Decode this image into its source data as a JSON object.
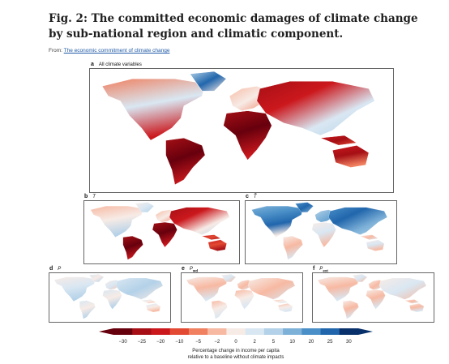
{
  "figure": {
    "title": "Fig. 2: The committed economic damages of climate change by sub-national region and climatic component.",
    "from_prefix": "From: ",
    "from_link": "The economic commitment of climate change"
  },
  "panels": [
    {
      "letter": "a",
      "label": "All climate variables",
      "mode": "all"
    },
    {
      "letter": "b",
      "label": "T",
      "mode": "T"
    },
    {
      "letter": "c",
      "label": "T̃",
      "mode": "Tvar"
    },
    {
      "letter": "d",
      "label": "P",
      "mode": "P"
    },
    {
      "letter": "e",
      "label": "P",
      "sub": "wd",
      "mode": "Pwd"
    },
    {
      "letter": "f",
      "label": "P",
      "sub": "ext",
      "mode": "Pext"
    }
  ],
  "colorbar": {
    "ticks": [
      "−30",
      "−25",
      "−20",
      "−10",
      "−5",
      "−2",
      "0",
      "2",
      "5",
      "10",
      "20",
      "25",
      "30"
    ],
    "label_line1": "Percentage change in income per capita",
    "label_line2": "relative to a baseline without climate impacts",
    "colors": [
      "#67000d",
      "#a50f15",
      "#cb181d",
      "#e34a33",
      "#f08060",
      "#f7b9a2",
      "#f7ebe6",
      "#d9e7f2",
      "#b3d1e8",
      "#7eb1d8",
      "#4a8fc7",
      "#2166ac",
      "#08306b"
    ]
  }
}
